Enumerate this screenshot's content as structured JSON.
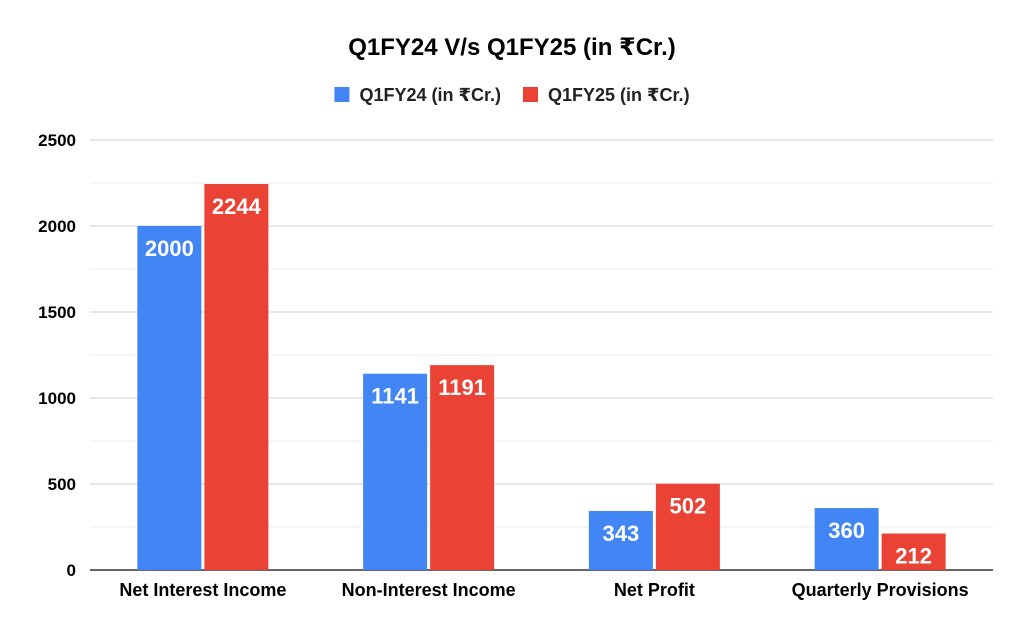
{
  "chart_data": {
    "type": "bar",
    "title": "Q1FY24 V/s Q1FY25 (in  ₹Cr.)",
    "categories": [
      "Net Interest Income",
      "Non-Interest Income",
      "Net Profit",
      "Quarterly Provisions"
    ],
    "series": [
      {
        "name": "Q1FY24 (in  ₹Cr.)",
        "color": "#4285f4",
        "values": [
          2000,
          1141,
          343,
          360
        ]
      },
      {
        "name": "Q1FY25 (in  ₹Cr.)",
        "color": "#ea4335",
        "values": [
          2244,
          1191,
          502,
          212
        ]
      }
    ],
    "ylim": [
      0,
      2500
    ],
    "yticks": [
      0,
      500,
      1000,
      1500,
      2000,
      2500
    ],
    "grid": true,
    "legend_position": "top-center",
    "data_labels": true
  }
}
